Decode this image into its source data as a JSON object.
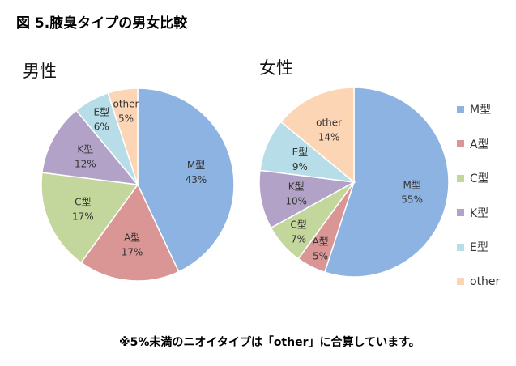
{
  "title": "図 5.腋臭タイプの男女比較",
  "note": "※5%未満のニオイタイプは「other」に合算しています。",
  "chart_data": [
    {
      "type": "pie",
      "title": "男性",
      "categories": [
        "M型",
        "A型",
        "C型",
        "K型",
        "E型",
        "other"
      ],
      "values": [
        43,
        17,
        17,
        12,
        6,
        5
      ],
      "labels": [
        "43%",
        "17%",
        "17%",
        "12%",
        "6%",
        "5%"
      ]
    },
    {
      "type": "pie",
      "title": "女性",
      "categories": [
        "M型",
        "A型",
        "C型",
        "K型",
        "E型",
        "other"
      ],
      "values": [
        55,
        5,
        7,
        10,
        9,
        14
      ],
      "labels": [
        "55%",
        "5%",
        "7%",
        "10%",
        "9%",
        "14%"
      ]
    }
  ],
  "legend": [
    "M型",
    "A型",
    "C型",
    "K型",
    "E型",
    "other"
  ],
  "colors": [
    "#8DB3E2",
    "#D99694",
    "#C3D69B",
    "#B3A2C7",
    "#B7DEE8",
    "#FCD5B5"
  ]
}
